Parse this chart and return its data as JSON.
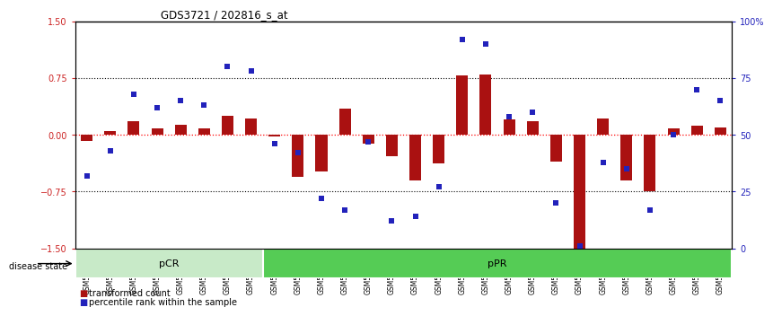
{
  "title": "GDS3721 / 202816_s_at",
  "samples": [
    "GSM559062",
    "GSM559063",
    "GSM559064",
    "GSM559065",
    "GSM559066",
    "GSM559067",
    "GSM559068",
    "GSM559069",
    "GSM559042",
    "GSM559043",
    "GSM559044",
    "GSM559045",
    "GSM559046",
    "GSM559047",
    "GSM559048",
    "GSM559049",
    "GSM559050",
    "GSM559051",
    "GSM559052",
    "GSM559053",
    "GSM559054",
    "GSM559055",
    "GSM559056",
    "GSM559057",
    "GSM559058",
    "GSM559059",
    "GSM559060",
    "GSM559061"
  ],
  "transformed_count": [
    -0.08,
    0.05,
    0.18,
    0.08,
    0.13,
    0.08,
    0.25,
    0.22,
    -0.02,
    -0.55,
    -0.48,
    0.35,
    -0.12,
    -0.28,
    -0.6,
    -0.38,
    0.78,
    0.8,
    0.2,
    0.18,
    -0.35,
    -1.52,
    0.22,
    -0.6,
    -0.75,
    0.08,
    0.12,
    0.1
  ],
  "percentile_rank": [
    32,
    43,
    68,
    62,
    65,
    63,
    80,
    78,
    46,
    42,
    22,
    17,
    47,
    12,
    14,
    27,
    92,
    90,
    58,
    60,
    20,
    1,
    38,
    35,
    17,
    50,
    70,
    65
  ],
  "groups": [
    {
      "label": "pCR",
      "start": 0,
      "end": 8,
      "color": "#c8eac8"
    },
    {
      "label": "pPR",
      "start": 8,
      "end": 28,
      "color": "#55cc55"
    }
  ],
  "ylim_left": [
    -1.5,
    1.5
  ],
  "ylim_right": [
    0,
    100
  ],
  "left_ticks": [
    -1.5,
    -0.75,
    0,
    0.75,
    1.5
  ],
  "right_ticks": [
    0,
    25,
    50,
    75,
    100
  ],
  "right_tick_labels": [
    "0",
    "25",
    "50",
    "75",
    "100%"
  ],
  "hlines_dotted": [
    0.75,
    -0.75
  ],
  "bar_color": "#aa1111",
  "dot_color": "#2222bb",
  "bg_color": "#ffffff",
  "left_tick_color": "#cc2222",
  "right_tick_color": "#2222bb",
  "legend_bar": "transformed count",
  "legend_dot": "percentile rank within the sample",
  "disease_state_label": "disease state"
}
